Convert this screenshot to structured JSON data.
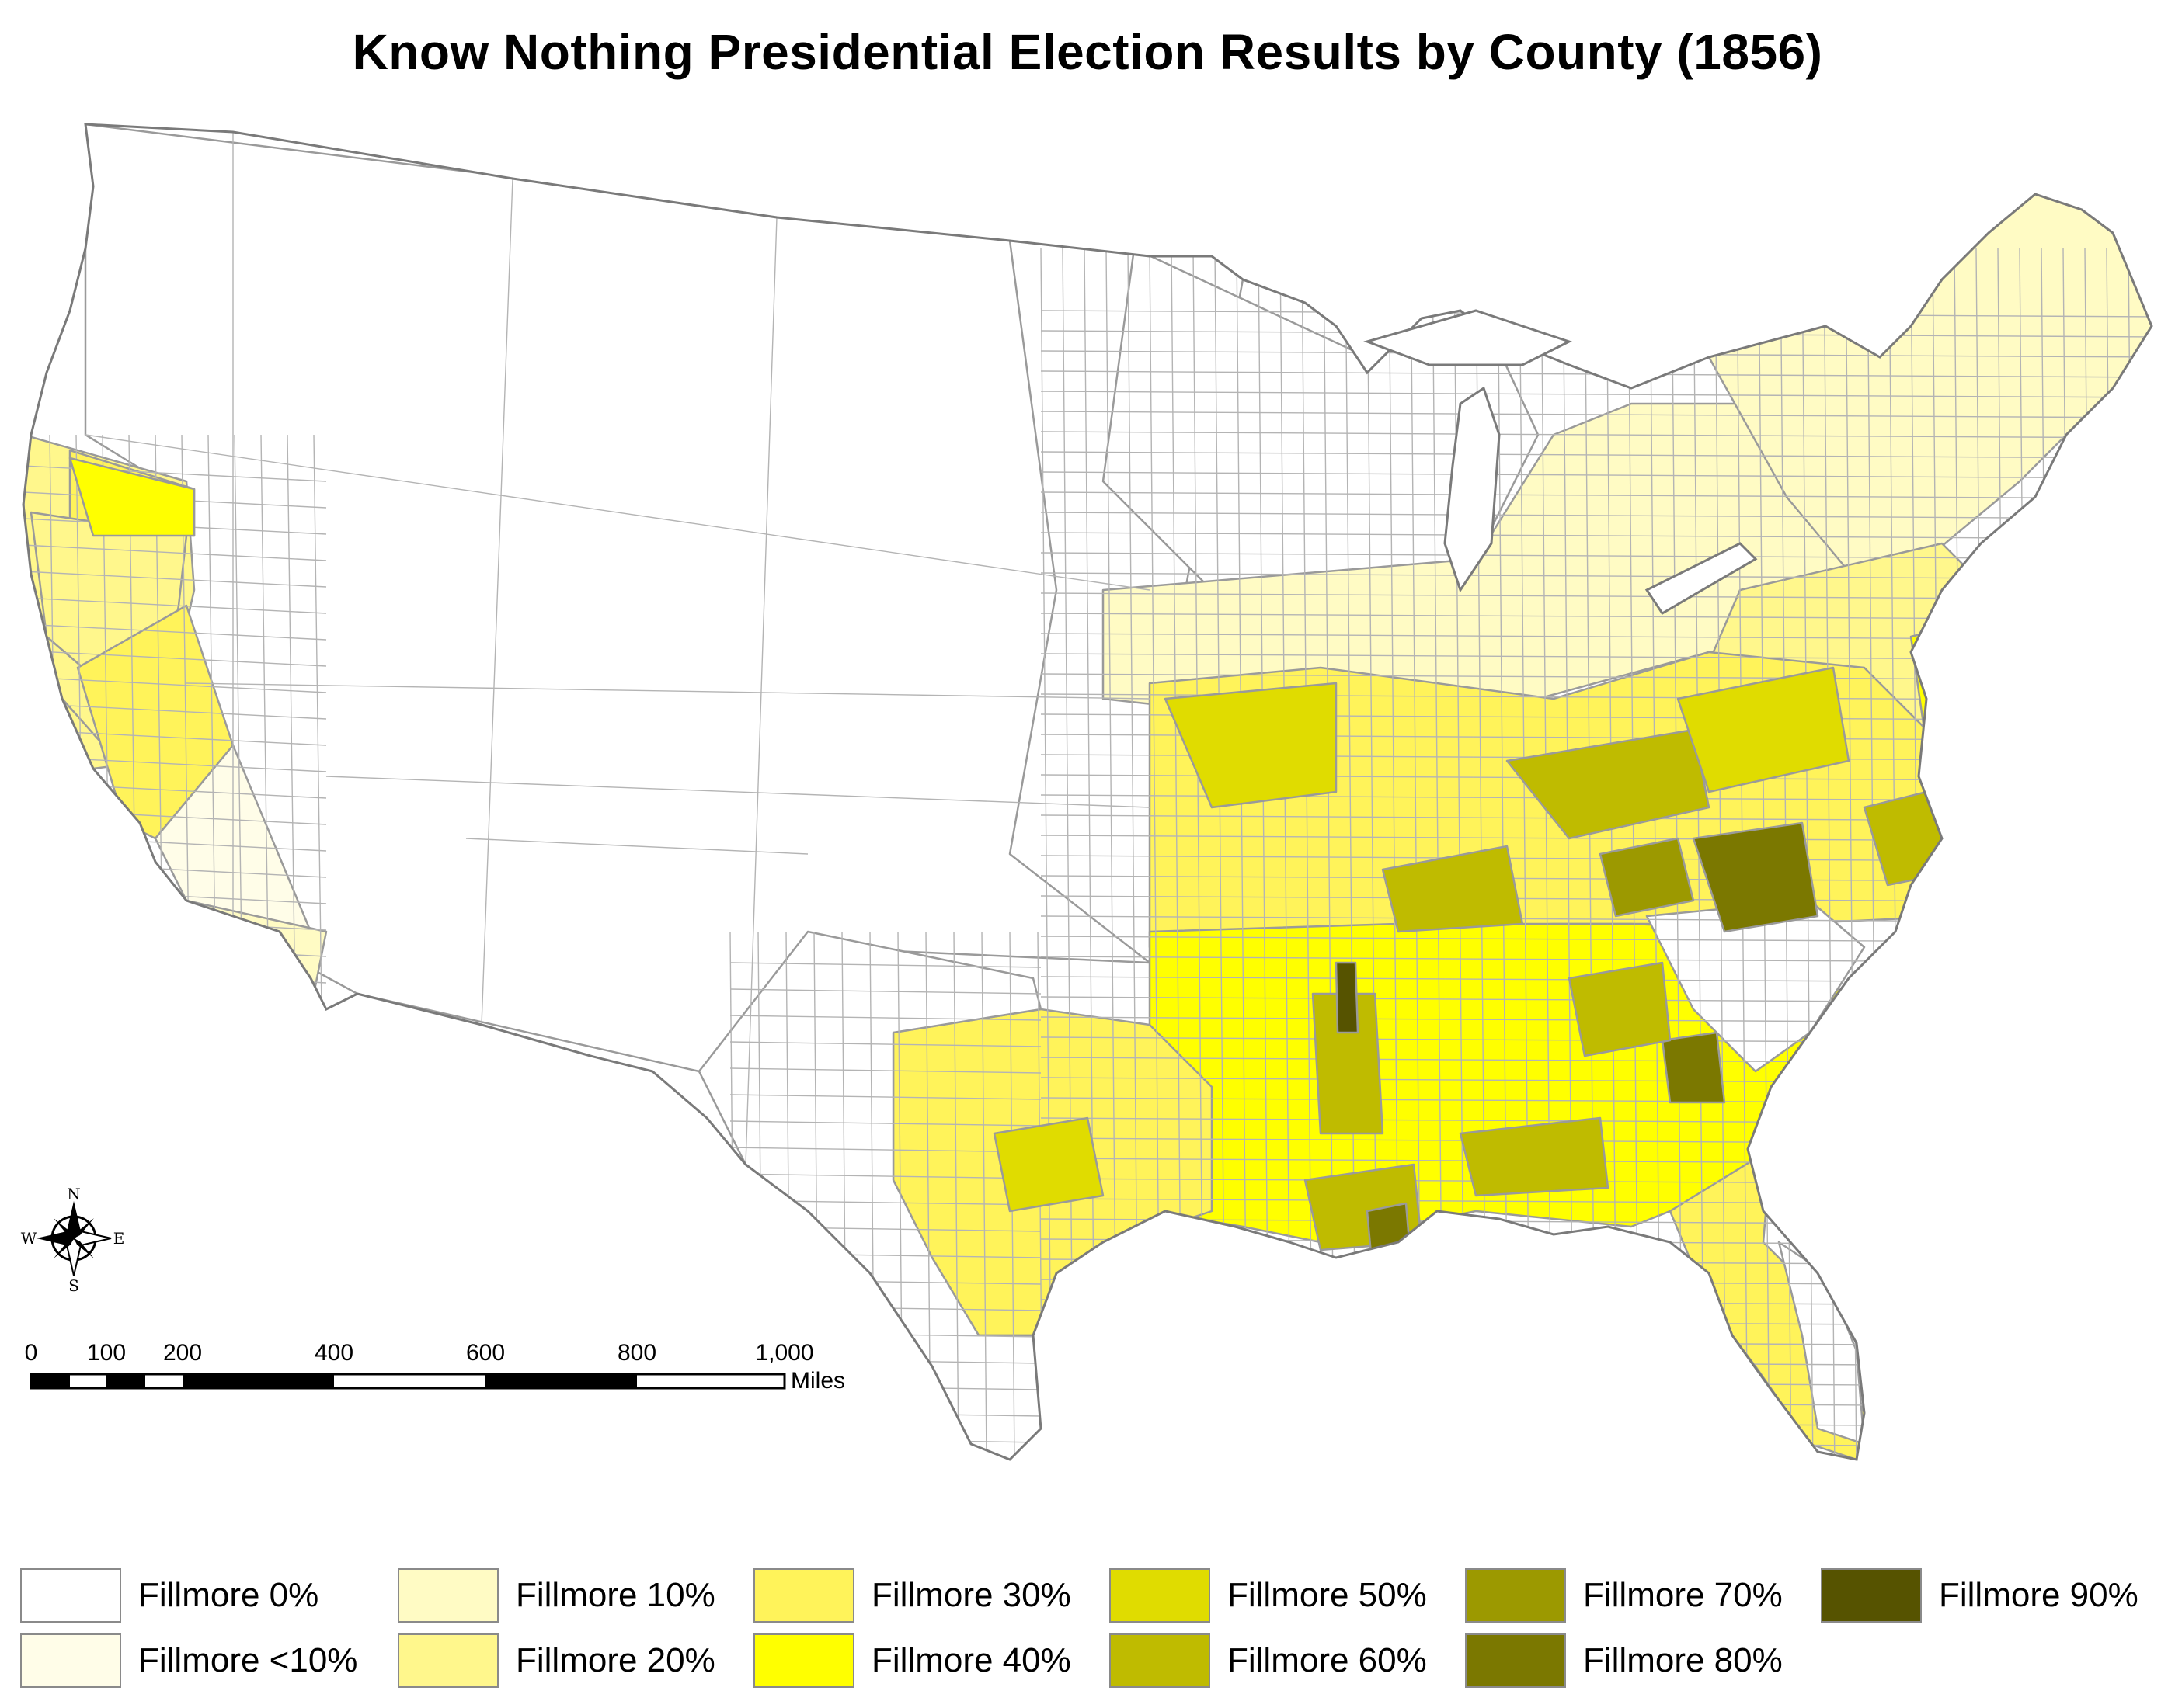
{
  "title": "Know Nothing Presidential Election Results by County (1856)",
  "colors": {
    "fillmore_0": "#ffffff",
    "fillmore_lt10": "#fffde8",
    "fillmore_10": "#fffbc4",
    "fillmore_20": "#fff78c",
    "fillmore_30": "#fff35a",
    "fillmore_40": "#ffff00",
    "fillmore_50": "#e0dc00",
    "fillmore_60": "#bfbb00",
    "fillmore_70": "#9c9900",
    "fillmore_80": "#7b7800",
    "fillmore_90": "#565300"
  },
  "legend": [
    {
      "label": "Fillmore 0%",
      "color": "#ffffff"
    },
    {
      "label": "Fillmore <10%",
      "color": "#fffde8"
    },
    {
      "label": "Fillmore 10%",
      "color": "#fffbc4"
    },
    {
      "label": "Fillmore 20%",
      "color": "#fff78c"
    },
    {
      "label": "Fillmore 30%",
      "color": "#fff35a"
    },
    {
      "label": "Fillmore 40%",
      "color": "#ffff00"
    },
    {
      "label": "Fillmore 50%",
      "color": "#e0dc00"
    },
    {
      "label": "Fillmore 60%",
      "color": "#bfbb00"
    },
    {
      "label": "Fillmore 70%",
      "color": "#9c9900"
    },
    {
      "label": "Fillmore 80%",
      "color": "#7b7800"
    },
    {
      "label": "Fillmore 90%",
      "color": "#565300"
    }
  ],
  "compass": {
    "icon": "compass-rose-icon",
    "north": "N",
    "south": "S",
    "east": "E",
    "west": "W"
  },
  "scale_bar": {
    "ticks": [
      "0",
      "100",
      "200",
      "400",
      "600",
      "800",
      "1,000"
    ],
    "unit": "Miles"
  },
  "regions": [
    {
      "name": "pacific-northwest-west",
      "color": "#fff78c"
    },
    {
      "name": "washington-east",
      "color": "#fff35a"
    },
    {
      "name": "oregon",
      "color": "#fff78c"
    },
    {
      "name": "california-north",
      "color": "#fff78c"
    },
    {
      "name": "california-central",
      "color": "#fff35a"
    },
    {
      "name": "california-southeast",
      "color": "#fffde8"
    },
    {
      "name": "california-south",
      "color": "#fffbc4"
    },
    {
      "name": "western-territories",
      "color": "#ffffff"
    },
    {
      "name": "great-plains",
      "color": "#ffffff"
    },
    {
      "name": "texas-west",
      "color": "#ffffff"
    },
    {
      "name": "texas-east",
      "color": "#fff35a"
    },
    {
      "name": "upper-midwest",
      "color": "#ffffff"
    },
    {
      "name": "old-northwest",
      "color": "#fffbc4"
    },
    {
      "name": "northeast",
      "color": "#fffbc4"
    },
    {
      "name": "mid-atlantic",
      "color": "#fff78c"
    },
    {
      "name": "missouri-kentucky-tennessee",
      "color": "#fff35a"
    },
    {
      "name": "deep-south",
      "color": "#ffff00"
    },
    {
      "name": "carolinas-coast",
      "color": "#ffffff"
    },
    {
      "name": "florida",
      "color": "#fff35a"
    },
    {
      "name": "florida-south",
      "color": "#ffffff"
    }
  ],
  "hotspots": [
    {
      "name": "missouri-river-counties",
      "color": "#e0dc00"
    },
    {
      "name": "kentucky-bluegrass",
      "color": "#bfbb00"
    },
    {
      "name": "tennessee-middle",
      "color": "#bfbb00"
    },
    {
      "name": "north-carolina-piedmont",
      "color": "#9c9900"
    },
    {
      "name": "north-carolina-central",
      "color": "#7b7800"
    },
    {
      "name": "north-carolina-east",
      "color": "#bfbb00"
    },
    {
      "name": "mississippi-delta",
      "color": "#bfbb00"
    },
    {
      "name": "mississippi-river-county",
      "color": "#565300"
    },
    {
      "name": "georgia-east",
      "color": "#7b7800"
    },
    {
      "name": "georgia-central",
      "color": "#bfbb00"
    },
    {
      "name": "alabama-south",
      "color": "#bfbb00"
    },
    {
      "name": "louisiana-south",
      "color": "#bfbb00"
    },
    {
      "name": "mobile-bay",
      "color": "#7b7800"
    },
    {
      "name": "maryland-delaware",
      "color": "#ffff00"
    },
    {
      "name": "texas-central",
      "color": "#e0dc00"
    },
    {
      "name": "virginia-valley",
      "color": "#e0dc00"
    },
    {
      "name": "oregon-northeast",
      "color": "#ffff00"
    }
  ]
}
